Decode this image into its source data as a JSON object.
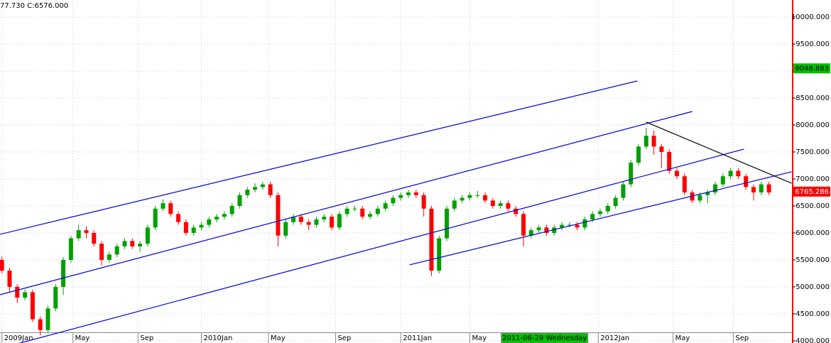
{
  "chart_data": {
    "type": "candlestick",
    "header_text": "77.730  C:6576.000",
    "x": [
      0,
      2,
      4,
      6,
      8,
      10,
      12,
      14,
      16,
      18,
      20,
      22,
      24,
      26,
      28,
      30,
      32,
      34,
      36,
      38,
      40,
      42,
      44,
      46,
      48,
      50,
      52,
      54,
      56,
      58,
      60,
      62,
      64,
      66,
      68,
      70,
      72,
      74,
      76,
      78,
      80,
      82,
      84,
      86,
      88,
      90,
      92,
      94,
      96,
      98,
      100,
      102,
      104,
      106,
      108,
      110,
      112,
      114,
      116,
      118,
      120,
      122,
      124,
      126,
      128,
      130,
      132,
      134,
      136,
      138,
      140,
      142,
      144,
      146,
      148,
      150,
      152,
      154,
      156,
      158,
      160,
      162,
      164,
      166,
      168,
      170,
      172,
      174,
      176,
      178,
      180,
      182,
      184,
      186,
      188,
      190,
      192,
      194,
      196,
      198,
      200
    ],
    "open": [
      5500,
      5300,
      5000,
      4800,
      4900,
      4400,
      4200,
      4600,
      5000,
      5500,
      5900,
      6050,
      6000,
      5800,
      5500,
      5600,
      5750,
      5850,
      5750,
      5800,
      6100,
      6450,
      6550,
      6350,
      6200,
      6000,
      6100,
      6150,
      6250,
      6300,
      6350,
      6500,
      6700,
      6800,
      6850,
      6900,
      6700,
      5950,
      6200,
      6300,
      6200,
      6150,
      6250,
      6300,
      6100,
      6350,
      6450,
      6450,
      6300,
      6350,
      6450,
      6550,
      6650,
      6700,
      6750,
      6700,
      6450,
      5300,
      5900,
      6450,
      6600,
      6650,
      6700,
      6700,
      6600,
      6500,
      6550,
      6450,
      6350,
      5950,
      6050,
      6100,
      6000,
      6100,
      6150,
      6150,
      6100,
      6250,
      6350,
      6400,
      6500,
      6650,
      6900,
      7300,
      7600,
      7800,
      7600,
      7500,
      7150,
      7050,
      6750,
      6600,
      6700,
      6750,
      6900,
      7050,
      7150,
      7050,
      6850,
      6750,
      6900
    ],
    "high": [
      5560,
      5350,
      5050,
      4950,
      4950,
      4450,
      4650,
      5050,
      5550,
      5950,
      6150,
      6120,
      6050,
      5850,
      5650,
      5800,
      5900,
      5900,
      5850,
      6150,
      6500,
      6620,
      6600,
      6400,
      6250,
      6150,
      6200,
      6300,
      6350,
      6400,
      6550,
      6750,
      6850,
      6920,
      6950,
      6950,
      6750,
      6250,
      6350,
      6350,
      6250,
      6300,
      6350,
      6350,
      6400,
      6500,
      6500,
      6500,
      6400,
      6500,
      6600,
      6700,
      6750,
      6800,
      6800,
      6750,
      6500,
      5950,
      6500,
      6650,
      6700,
      6750,
      6780,
      6750,
      6650,
      6600,
      6600,
      6500,
      6400,
      6100,
      6150,
      6150,
      6150,
      6200,
      6200,
      6200,
      6300,
      6400,
      6450,
      6550,
      6700,
      6950,
      7350,
      7650,
      7950,
      7900,
      7650,
      7550,
      7200,
      7100,
      6800,
      6750,
      6800,
      6950,
      7100,
      7200,
      7200,
      7100,
      6900,
      6950,
      6950
    ],
    "low": [
      5250,
      4900,
      4700,
      4750,
      4350,
      4100,
      4150,
      4550,
      4850,
      5450,
      5850,
      5900,
      5750,
      5400,
      5450,
      5550,
      5700,
      5700,
      5650,
      5750,
      6050,
      6400,
      6300,
      6150,
      5950,
      5950,
      6050,
      6100,
      6200,
      6250,
      6300,
      6450,
      6650,
      6750,
      6800,
      6650,
      5750,
      5900,
      6150,
      6150,
      6050,
      6100,
      6200,
      6050,
      6050,
      6300,
      6400,
      6250,
      6250,
      6300,
      6400,
      6500,
      6600,
      6650,
      6650,
      6300,
      5200,
      5250,
      5850,
      6400,
      6550,
      6600,
      6650,
      6550,
      6450,
      6450,
      6400,
      6300,
      5750,
      5900,
      6000,
      5950,
      5950,
      6050,
      6100,
      6050,
      6050,
      6200,
      6300,
      6350,
      6450,
      6600,
      6850,
      7250,
      7550,
      7450,
      7200,
      7100,
      7000,
      6700,
      6550,
      6550,
      6550,
      6700,
      6850,
      7000,
      7000,
      6800,
      6600,
      6700,
      6700
    ],
    "close": [
      5300,
      5000,
      4800,
      4900,
      4400,
      4200,
      4600,
      5000,
      5500,
      5900,
      6050,
      6000,
      5800,
      5500,
      5600,
      5750,
      5850,
      5750,
      5800,
      6100,
      6450,
      6550,
      6350,
      6200,
      6000,
      6100,
      6150,
      6250,
      6300,
      6350,
      6500,
      6700,
      6800,
      6850,
      6900,
      6700,
      5950,
      6200,
      6300,
      6200,
      6150,
      6250,
      6300,
      6100,
      6350,
      6450,
      6450,
      6300,
      6350,
      6450,
      6550,
      6650,
      6700,
      6750,
      6700,
      6450,
      5300,
      5900,
      6450,
      6600,
      6650,
      6700,
      6700,
      6600,
      6500,
      6550,
      6450,
      6350,
      5950,
      6050,
      6100,
      6000,
      6100,
      6150,
      6150,
      6100,
      6250,
      6350,
      6400,
      6500,
      6650,
      6900,
      7300,
      7600,
      7800,
      7600,
      7500,
      7150,
      7050,
      6750,
      6600,
      6700,
      6750,
      6900,
      7050,
      7150,
      7050,
      6850,
      6750,
      6900,
      6750
    ],
    "up_color": "#00a000",
    "down_color": "#ff0000",
    "xlim": [
      -0.5,
      206
    ],
    "ylim": [
      3960,
      10316
    ],
    "xticks": [
      {
        "value": 0,
        "label": "2009Jan"
      },
      {
        "value": 18.5,
        "label": "May"
      },
      {
        "value": 35.5,
        "label": "Sep"
      },
      {
        "value": 52,
        "label": "2010Jan"
      },
      {
        "value": 69.5,
        "label": "May"
      },
      {
        "value": 87,
        "label": "Sep"
      },
      {
        "value": 104,
        "label": "2011Jan"
      },
      {
        "value": 122,
        "label": "May"
      },
      {
        "value": 155.5,
        "label": "2012Jan"
      },
      {
        "value": 175,
        "label": "May"
      },
      {
        "value": 190.7,
        "label": "Sep"
      }
    ],
    "yticks": [
      {
        "value": 4000,
        "label": "4000.000"
      },
      {
        "value": 4500,
        "label": "4500.000"
      },
      {
        "value": 5000,
        "label": "5000.000"
      },
      {
        "value": 5500,
        "label": "5500.000"
      },
      {
        "value": 6000,
        "label": "6000.000"
      },
      {
        "value": 6500,
        "label": "6500.000"
      },
      {
        "value": 7000,
        "label": "7000.000"
      },
      {
        "value": 7500,
        "label": "7500.000"
      },
      {
        "value": 8000,
        "label": "8000.000"
      },
      {
        "value": 8500,
        "label": "8500.000"
      },
      {
        "value": 9000,
        "label": "9000.000"
      },
      {
        "value": 9500,
        "label": "9500.000"
      },
      {
        "value": 10000,
        "label": "10000.000"
      }
    ],
    "grid": true,
    "trendlines": [
      {
        "x": [
          -0.5,
          165.7
        ],
        "y": [
          5974,
          8816
        ],
        "color": "#0000dd"
      },
      {
        "x": [
          -0.5,
          180
        ],
        "y": [
          4855,
          8250
        ],
        "color": "#0000dd"
      },
      {
        "x": [
          4.1,
          193.5
        ],
        "y": [
          3947,
          7553
        ],
        "color": "#0000dd"
      },
      {
        "x": [
          106.3,
          205.9
        ],
        "y": [
          5408,
          7132
        ],
        "color": "#0000dd"
      },
      {
        "x": [
          168,
          205.9
        ],
        "y": [
          8053,
          6921
        ],
        "color": "#000000"
      }
    ],
    "price_labels": [
      {
        "value": 9048.883,
        "label": "9048.883",
        "color": "#00c000",
        "text_color": "#000000"
      },
      {
        "value": 6765.286,
        "label": "6765.286",
        "color": "#ff0000",
        "text_color": "#ffffff"
      }
    ],
    "cursor": {
      "x": 141.5,
      "label": "2011-06-29 Wednesday",
      "color": "#00c000"
    }
  }
}
